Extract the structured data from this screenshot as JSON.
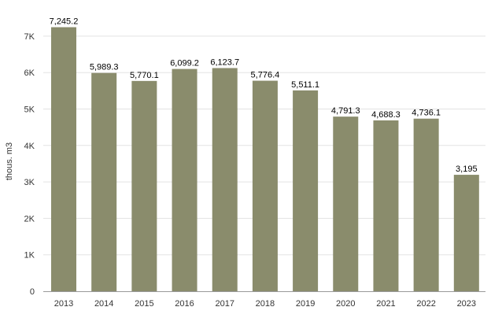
{
  "chart_data": {
    "type": "bar",
    "categories": [
      "2013",
      "2014",
      "2015",
      "2016",
      "2017",
      "2018",
      "2019",
      "2020",
      "2021",
      "2022",
      "2023"
    ],
    "values": [
      7245.2,
      5989.3,
      5770.1,
      6099.2,
      6123.7,
      5776.4,
      5511.1,
      4791.3,
      4688.3,
      4736.1,
      3195
    ],
    "data_labels": [
      "7,245.2",
      "5,989.3",
      "5,770.1",
      "6,099.2",
      "6,123.7",
      "5,776.4",
      "5,511.1",
      "4,791.3",
      "4,688.3",
      "4,736.1",
      "3,195"
    ],
    "ylabel": "thous. m3",
    "ylim": [
      0,
      7000
    ],
    "yticks": [
      0,
      1000,
      2000,
      3000,
      4000,
      5000,
      6000,
      7000
    ],
    "ytick_labels": [
      "0",
      "1K",
      "2K",
      "3K",
      "4K",
      "5K",
      "6K",
      "7K"
    ],
    "grid": true,
    "colors": {
      "bar": "#8a8c6c",
      "grid": "#e3e3e3",
      "axis": "#9a9a9a"
    }
  }
}
